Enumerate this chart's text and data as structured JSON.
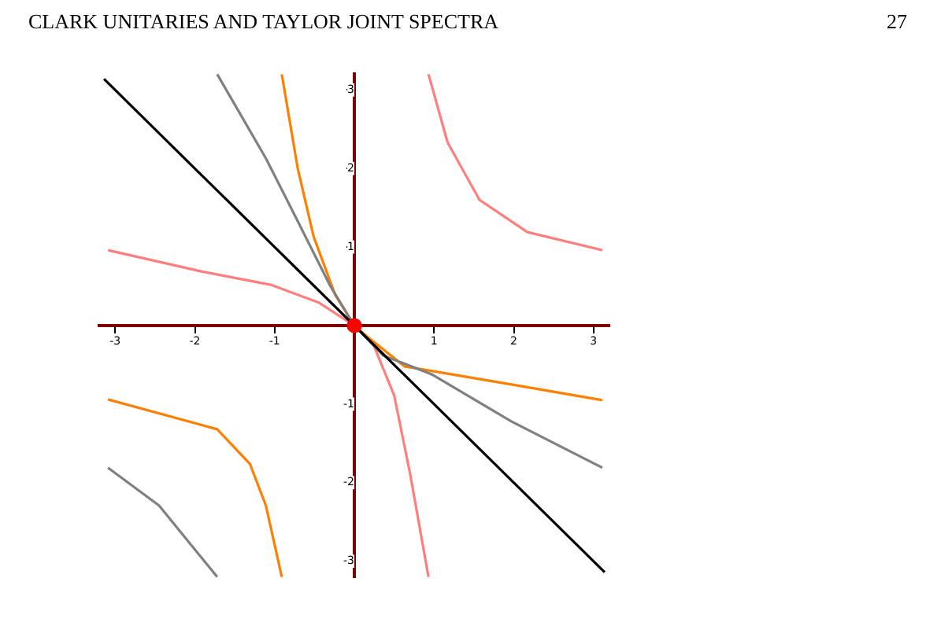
{
  "chart_data": {
    "type": "line",
    "annotations": [
      "CLARK UNITARIES AND TAYLOR JOINT SPECTRA",
      "27"
    ],
    "xlim": [
      -3.2,
      3.2
    ],
    "ylim": [
      -3.2,
      3.2
    ],
    "xticks": [
      -3,
      -2,
      -1,
      {
        "value": 0,
        "label": null
      },
      1,
      2,
      3
    ],
    "yticks": [
      -3,
      -2,
      -1,
      {
        "value": 0,
        "label": null
      },
      1,
      2,
      3
    ],
    "grid": false,
    "line_style": "solid",
    "marker": "none",
    "series": [
      {
        "color": "#000000",
        "x": [
          -3.14,
          0,
          3.14
        ],
        "values": [
          3.14,
          0,
          -3.14
        ]
      },
      {
        "color": "#808080",
        "x": [
          -1.72,
          -1.11,
          -0.71,
          -0.31,
          0,
          0.36,
          0.97,
          1.97,
          3.11
        ],
        "values": [
          3.2,
          2.13,
          1.33,
          0.52,
          0,
          -0.38,
          -0.62,
          -1.22,
          -1.81
        ]
      },
      {
        "color": "#808080",
        "x": [
          -3.09,
          -2.45,
          -1.72
        ],
        "values": [
          -1.81,
          -2.29,
          -3.2
        ]
      },
      {
        "color": "#ff8000",
        "x": [
          -0.91,
          -0.71,
          -0.51,
          -0.24,
          0,
          0.16,
          0.63,
          1.97,
          3.11
        ],
        "values": [
          3.2,
          2.0,
          1.13,
          0.39,
          0,
          -0.14,
          -0.52,
          -0.75,
          -0.95
        ]
      },
      {
        "color": "#ff8000",
        "x": [
          -3.09,
          -1.72,
          -1.31,
          -1.11,
          -0.91
        ],
        "values": [
          -0.94,
          -1.32,
          -1.76,
          -2.29,
          -3.2
        ]
      },
      {
        "color": "#ff7f7f",
        "x": [
          -3.09,
          -1.92,
          -1.05,
          -0.44,
          0,
          0.23,
          0.5,
          0.7,
          0.93
        ],
        "values": [
          0.96,
          0.69,
          0.52,
          0.29,
          0,
          -0.22,
          -0.89,
          -1.89,
          -3.2
        ]
      },
      {
        "color": "#ff7f7f",
        "x": [
          0.93,
          1.17,
          1.57,
          2.17,
          3.11
        ],
        "values": [
          3.2,
          2.33,
          1.6,
          1.19,
          0.96
        ]
      },
      {
        "type": "scatter",
        "marker": "circle",
        "color": "#ff0000",
        "x": [
          0
        ],
        "values": [
          0
        ]
      }
    ]
  }
}
